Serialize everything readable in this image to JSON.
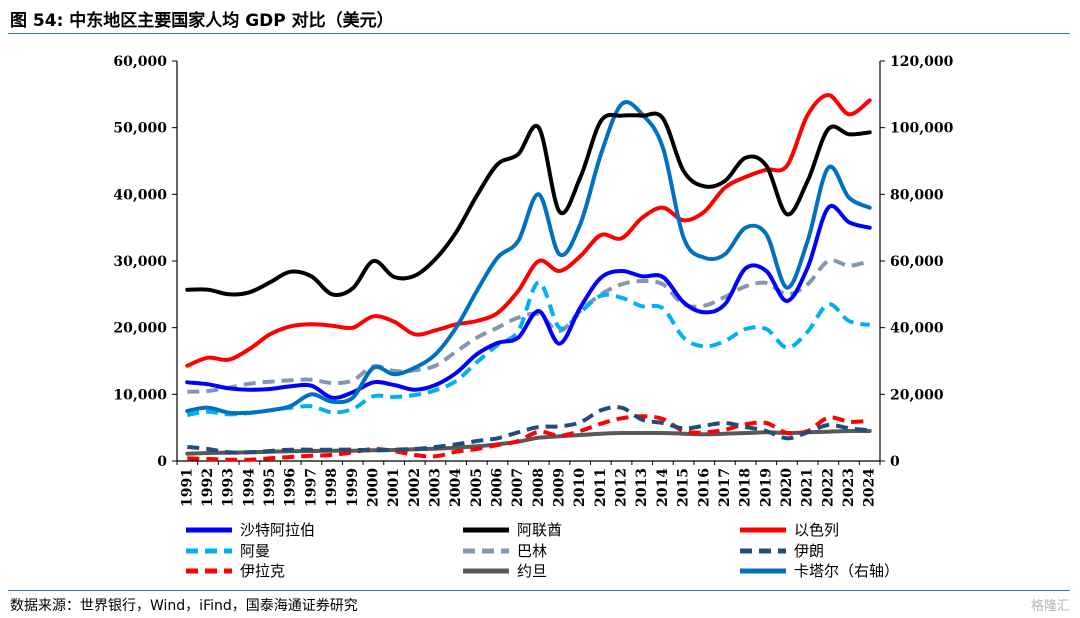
{
  "header": {
    "title": "图 54:  中东地区主要国家人均 GDP 对比（美元）"
  },
  "footer": {
    "source": "数据来源：世界银行，Wind，iFind，国泰海通证券研究",
    "watermark": "格隆汇"
  },
  "chart_data": {
    "type": "line",
    "title": "",
    "xlabel": "",
    "ylabel": "",
    "x": [
      "1991",
      "1992",
      "1993",
      "1994",
      "1995",
      "1996",
      "1997",
      "1998",
      "1999",
      "2000",
      "2001",
      "2002",
      "2003",
      "2004",
      "2005",
      "2006",
      "2007",
      "2008",
      "2009",
      "2010",
      "2011",
      "2012",
      "2013",
      "2014",
      "2015",
      "2016",
      "2017",
      "2018",
      "2019",
      "2020",
      "2021",
      "2022",
      "2023",
      "2024"
    ],
    "ylim": [
      0,
      60000
    ],
    "y2lim": [
      0,
      120000
    ],
    "yticks": [
      "0",
      "10,000",
      "20,000",
      "30,000",
      "40,000",
      "50,000",
      "60,000"
    ],
    "y2ticks": [
      "0",
      "20,000",
      "40,000",
      "60,000",
      "80,000",
      "100,000",
      "120,000"
    ],
    "grid": false,
    "legend_position": "bottom",
    "series": [
      {
        "name": "沙特阿拉伯",
        "axis": "left",
        "color": "#0000ff",
        "dash": "solid",
        "values": [
          11800,
          11500,
          10900,
          10700,
          10800,
          11200,
          11300,
          9500,
          10300,
          11800,
          11400,
          10700,
          11400,
          13200,
          16000,
          17700,
          18500,
          22500,
          17600,
          23000,
          27500,
          28500,
          27700,
          27600,
          23800,
          22300,
          23500,
          28900,
          28500,
          24000,
          29000,
          38000,
          35800,
          35000
        ]
      },
      {
        "name": "阿联酋",
        "axis": "left",
        "color": "#000000",
        "dash": "solid",
        "values": [
          25700,
          25700,
          25000,
          25300,
          26800,
          28400,
          27700,
          25000,
          25900,
          30000,
          27600,
          27800,
          30300,
          34300,
          39800,
          44500,
          46000,
          50000,
          37400,
          42500,
          51000,
          51800,
          51800,
          51400,
          43500,
          41200,
          42000,
          45500,
          44300,
          37000,
          42000,
          49800,
          49000,
          49300
        ]
      },
      {
        "name": "以色列",
        "axis": "left",
        "color": "#ff0000",
        "dash": "solid",
        "values": [
          14300,
          15500,
          15200,
          16800,
          19000,
          20200,
          20500,
          20300,
          20000,
          21700,
          20900,
          19000,
          19600,
          20500,
          21000,
          22200,
          25500,
          30000,
          28500,
          30700,
          33900,
          33400,
          36500,
          38000,
          36100,
          37400,
          41000,
          42600,
          43700,
          44300,
          51900,
          54900,
          52000,
          54100
        ]
      },
      {
        "name": "阿曼",
        "axis": "left",
        "color": "#00b0f0",
        "dash": "dash",
        "values": [
          6900,
          7400,
          7000,
          7200,
          7600,
          8000,
          8200,
          7300,
          7800,
          9700,
          9600,
          9900,
          10600,
          12000,
          14800,
          17400,
          19500,
          26800,
          20000,
          22300,
          24800,
          24500,
          23200,
          22900,
          18500,
          17200,
          18000,
          19800,
          19800,
          17000,
          19400,
          23500,
          21000,
          20400
        ]
      },
      {
        "name": "巴林",
        "axis": "left",
        "color": "#8497b0",
        "dash": "dash",
        "values": [
          10400,
          10500,
          11000,
          11600,
          11900,
          12100,
          12200,
          11700,
          12100,
          14200,
          13500,
          13600,
          14300,
          16400,
          18500,
          20000,
          21500,
          22000,
          19500,
          22500,
          25000,
          26500,
          27000,
          26500,
          23500,
          23300,
          24600,
          26200,
          26700,
          25000,
          26500,
          30000,
          29300,
          30000
        ]
      },
      {
        "name": "伊朗",
        "axis": "left",
        "color": "#1f4e79",
        "dash": "dash",
        "values": [
          2100,
          1800,
          1300,
          1300,
          1500,
          1700,
          1700,
          1700,
          1700,
          1600,
          1700,
          1800,
          2100,
          2500,
          3000,
          3400,
          4300,
          5100,
          5200,
          5800,
          7600,
          8000,
          6200,
          5700,
          4900,
          5300,
          5700,
          5100,
          4500,
          3400,
          4300,
          5400,
          4900,
          4600
        ]
      },
      {
        "name": "伊拉克",
        "axis": "left",
        "color": "#ff0000",
        "dash": "dash",
        "values": [
          400,
          300,
          200,
          200,
          400,
          600,
          800,
          900,
          1300,
          1800,
          1500,
          900,
          700,
          1400,
          1800,
          2400,
          3000,
          4400,
          3800,
          4500,
          5600,
          6400,
          6700,
          6300,
          4500,
          4300,
          4700,
          5500,
          5700,
          4200,
          4500,
          6500,
          5900,
          6000
        ]
      },
      {
        "name": "约旦",
        "axis": "left",
        "color": "#595959",
        "dash": "solid",
        "values": [
          1100,
          1200,
          1250,
          1300,
          1400,
          1450,
          1500,
          1550,
          1550,
          1600,
          1650,
          1750,
          1850,
          2000,
          2200,
          2500,
          2900,
          3500,
          3700,
          3900,
          4100,
          4200,
          4200,
          4200,
          4100,
          4000,
          4100,
          4200,
          4300,
          4200,
          4300,
          4400,
          4500,
          4500
        ]
      },
      {
        "name": "卡塔尔（右轴）",
        "axis": "right",
        "color": "#0070c0",
        "dash": "solid",
        "values": [
          15000,
          16000,
          14500,
          14500,
          15200,
          16500,
          20000,
          17800,
          19000,
          28000,
          26000,
          28000,
          32000,
          40000,
          51000,
          61000,
          66000,
          80000,
          62000,
          71000,
          92000,
          107000,
          104000,
          94000,
          67000,
          61000,
          62000,
          70000,
          68000,
          52000,
          66000,
          88000,
          79000,
          76000
        ]
      }
    ]
  }
}
